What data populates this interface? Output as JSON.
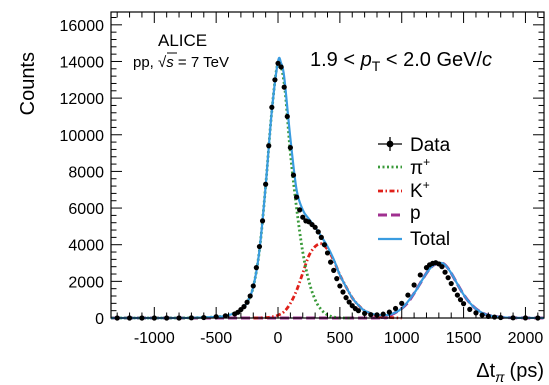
{
  "chart_data": {
    "type": "line",
    "xlabel_symbol": "Δt",
    "xlabel_sub": "π",
    "xlabel_unit": "(ps)",
    "ylabel": "Counts",
    "xlim": [
      -1350,
      2150
    ],
    "ylim": [
      0,
      16700
    ],
    "x_ticks": [
      -1000,
      -500,
      0,
      500,
      1000,
      1500,
      2000
    ],
    "y_ticks": [
      0,
      2000,
      4000,
      6000,
      8000,
      10000,
      12000,
      14000,
      16000
    ],
    "grid": false,
    "legend_position": "right",
    "annotations": {
      "experiment": "ALICE",
      "system_prefix": "pp, ",
      "sqrt_symbol": "√",
      "s_var": "s",
      "energy": " = 7 TeV",
      "range_low": "1.9 < ",
      "range_var": "p",
      "range_sub": "T",
      "range_high": " < 2.0 GeV/",
      "range_c": "c"
    },
    "legend": [
      {
        "key": "data",
        "label": "Data",
        "sup": ""
      },
      {
        "key": "pion",
        "label": "π",
        "sup": "+"
      },
      {
        "key": "kaon",
        "label": "K",
        "sup": "+"
      },
      {
        "key": "proton",
        "label": "p",
        "sup": ""
      },
      {
        "key": "total",
        "label": "Total",
        "sup": ""
      }
    ],
    "colors": {
      "data": "#000000",
      "pion": "#3a9a3a",
      "kaon": "#e0201a",
      "proton": "#a03090",
      "total": "#3a9ce0"
    },
    "series": [
      {
        "key": "data",
        "style": "points",
        "x": [
          -1300,
          -1200,
          -1100,
          -1000,
          -900,
          -800,
          -700,
          -600,
          -500,
          -425,
          -350,
          -325,
          -300,
          -275,
          -250,
          -225,
          -200,
          -175,
          -150,
          -125,
          -100,
          -75,
          -50,
          -25,
          0,
          25,
          50,
          75,
          100,
          125,
          150,
          175,
          200,
          225,
          250,
          275,
          300,
          325,
          350,
          375,
          400,
          425,
          450,
          475,
          500,
          525,
          550,
          575,
          600,
          625,
          650,
          700,
          750,
          800,
          850,
          900,
          950,
          1000,
          1050,
          1100,
          1150,
          1200,
          1225,
          1250,
          1275,
          1300,
          1325,
          1350,
          1375,
          1400,
          1425,
          1450,
          1475,
          1500,
          1550,
          1600,
          1650,
          1700,
          1750,
          1800,
          1900,
          2000,
          2100
        ],
        "y": [
          0,
          0,
          0,
          0,
          0,
          0,
          10,
          25,
          70,
          120,
          220,
          310,
          460,
          620,
          860,
          1200,
          1750,
          2750,
          3900,
          5300,
          7300,
          9400,
          11500,
          13000,
          13900,
          13700,
          12600,
          11000,
          9300,
          7800,
          6600,
          5900,
          5500,
          5300,
          5250,
          5100,
          4950,
          4700,
          4400,
          4000,
          3550,
          3050,
          2600,
          2150,
          1750,
          1420,
          1110,
          870,
          670,
          510,
          400,
          250,
          180,
          170,
          210,
          320,
          520,
          800,
          1250,
          1800,
          2350,
          2750,
          2900,
          2980,
          3020,
          2950,
          2800,
          2500,
          2200,
          1880,
          1550,
          1250,
          1000,
          780,
          470,
          280,
          160,
          90,
          50,
          25,
          10,
          5,
          0
        ]
      },
      {
        "key": "pion",
        "style": "dotted",
        "x": [
          -1350,
          -900,
          -700,
          -500,
          -400,
          -300,
          -250,
          -200,
          -150,
          -100,
          -50,
          0,
          50,
          100,
          150,
          200,
          250,
          300,
          350,
          400,
          450,
          500,
          550,
          600
        ],
        "y": [
          0,
          0,
          10,
          60,
          150,
          450,
          850,
          1700,
          3700,
          7200,
          11300,
          13900,
          12800,
          9000,
          6000,
          3600,
          2000,
          1000,
          450,
          170,
          50,
          10,
          0,
          0
        ]
      },
      {
        "key": "kaon",
        "style": "dashdot",
        "x": [
          -200,
          -100,
          -50,
          0,
          50,
          100,
          150,
          200,
          250,
          300,
          350,
          400,
          450,
          500,
          550,
          600,
          650,
          700,
          800,
          900,
          1000
        ],
        "y": [
          0,
          20,
          60,
          150,
          350,
          800,
          1500,
          2450,
          3400,
          3900,
          4050,
          3750,
          3150,
          2350,
          1700,
          1100,
          700,
          400,
          120,
          30,
          0
        ]
      },
      {
        "key": "proton",
        "style": "dashed",
        "x": [
          -1350,
          700,
          800,
          900,
          950,
          1000,
          1050,
          1100,
          1150,
          1200,
          1250,
          1300,
          1325,
          1350,
          1375,
          1400,
          1450,
          1500,
          1550,
          1600,
          1650,
          1700,
          1800,
          1900,
          2000,
          2150
        ],
        "y": [
          0,
          0,
          50,
          150,
          300,
          520,
          850,
          1350,
          1900,
          2450,
          2850,
          3000,
          3000,
          2900,
          2700,
          2450,
          1850,
          1280,
          830,
          500,
          280,
          150,
          45,
          15,
          5,
          0
        ]
      },
      {
        "key": "total",
        "style": "solid",
        "x": [
          -1350,
          -900,
          -700,
          -500,
          -400,
          -300,
          -250,
          -200,
          -150,
          -100,
          -50,
          0,
          25,
          50,
          100,
          150,
          200,
          250,
          300,
          350,
          400,
          450,
          500,
          550,
          600,
          650,
          700,
          800,
          900,
          1000,
          1100,
          1150,
          1200,
          1250,
          1300,
          1325,
          1350,
          1400,
          1450,
          1500,
          1550,
          1600,
          1650,
          1700,
          1800,
          1900,
          2000,
          2150
        ],
        "y": [
          0,
          0,
          10,
          60,
          150,
          450,
          850,
          1700,
          3700,
          7200,
          11300,
          14000,
          13900,
          13150,
          9800,
          7000,
          5900,
          5400,
          4950,
          4450,
          3900,
          3200,
          2350,
          1700,
          1100,
          700,
          400,
          170,
          180,
          520,
          1350,
          1900,
          2450,
          2850,
          3000,
          3000,
          2900,
          2450,
          1850,
          1280,
          830,
          500,
          280,
          150,
          45,
          15,
          5,
          0
        ]
      }
    ]
  }
}
